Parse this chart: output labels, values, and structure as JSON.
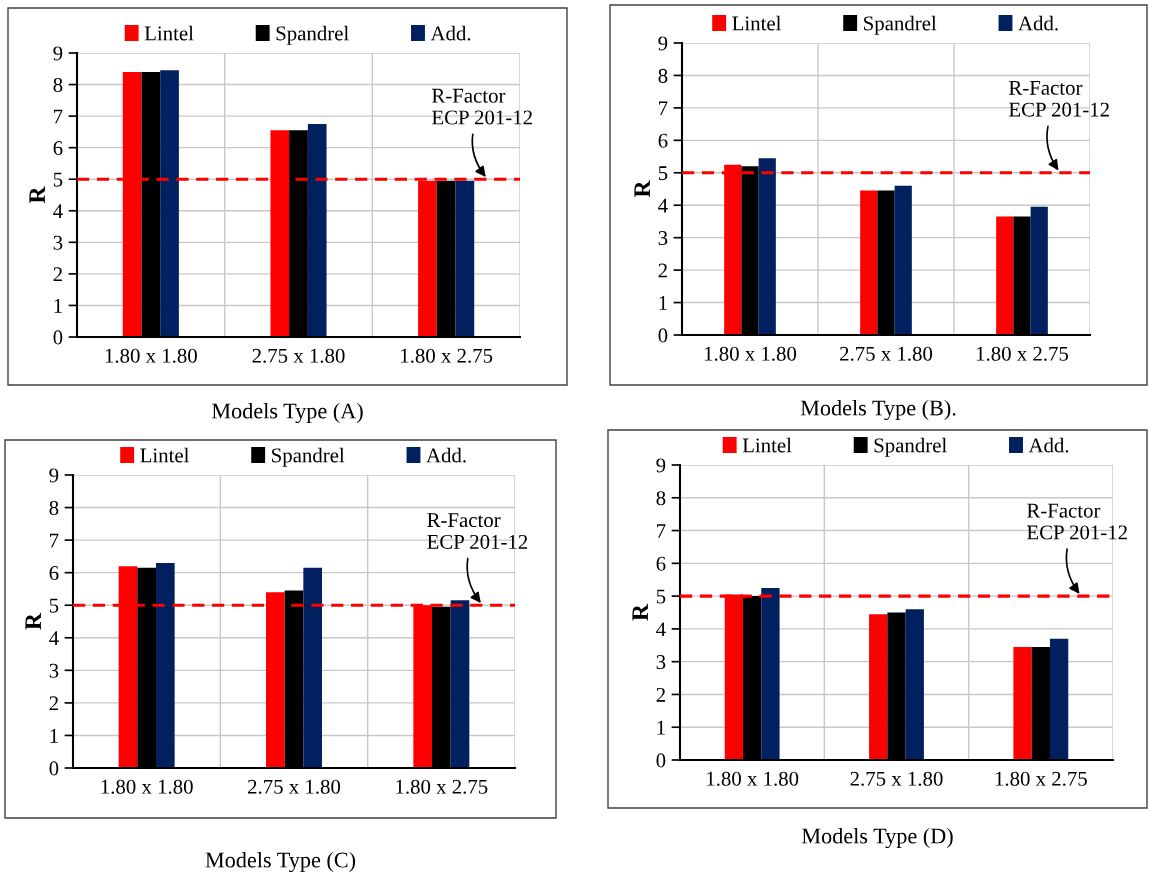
{
  "chart_data": [
    {
      "type": "bar",
      "title": "Models Type (A)",
      "ylabel": "R",
      "categories": [
        "1.80 x 1.80",
        "2.75 x 1.80",
        "1.80 x 2.75"
      ],
      "series": [
        {
          "name": "Lintel",
          "color": "#ff0000",
          "values": [
            8.4,
            6.55,
            4.95
          ]
        },
        {
          "name": "Spandrel",
          "color": "#000000",
          "values": [
            8.4,
            6.55,
            4.95
          ]
        },
        {
          "name": "Add.",
          "color": "#002060",
          "values": [
            8.45,
            6.75,
            4.95
          ]
        }
      ],
      "ylim": [
        0,
        9
      ],
      "yticks": [
        0,
        1,
        2,
        3,
        4,
        5,
        6,
        7,
        8,
        9
      ],
      "grid": true,
      "legend": "top",
      "ref_lines": [
        {
          "axis": "y",
          "value": 5,
          "label": "R-Factor\nECP 201-12",
          "color": "#ff0000",
          "line_style": "dashed"
        }
      ]
    },
    {
      "type": "bar",
      "title": "Models Type (B).",
      "ylabel": "R",
      "categories": [
        "1.80 x 1.80",
        "2.75 x 1.80",
        "1.80 x 2.75"
      ],
      "series": [
        {
          "name": "Lintel",
          "color": "#ff0000",
          "values": [
            5.25,
            4.45,
            3.65
          ]
        },
        {
          "name": "Spandrel",
          "color": "#000000",
          "values": [
            5.2,
            4.45,
            3.65
          ]
        },
        {
          "name": "Add.",
          "color": "#002060",
          "values": [
            5.45,
            4.6,
            3.95
          ]
        }
      ],
      "ylim": [
        0,
        9
      ],
      "yticks": [
        0,
        1,
        2,
        3,
        4,
        5,
        6,
        7,
        8,
        9
      ],
      "grid": true,
      "legend": "top",
      "ref_lines": [
        {
          "axis": "y",
          "value": 5,
          "label": "R-Factor\nECP 201-12",
          "color": "#ff0000",
          "line_style": "dashed"
        }
      ]
    },
    {
      "type": "bar",
      "title": "Models Type (C)",
      "ylabel": "R",
      "categories": [
        "1.80 x 1.80",
        "2.75 x 1.80",
        "1.80 x 2.75"
      ],
      "series": [
        {
          "name": "Lintel",
          "color": "#ff0000",
          "values": [
            6.2,
            5.4,
            5.0
          ]
        },
        {
          "name": "Spandrel",
          "color": "#000000",
          "values": [
            6.15,
            5.45,
            4.95
          ]
        },
        {
          "name": "Add.",
          "color": "#002060",
          "values": [
            6.3,
            6.15,
            5.15
          ]
        }
      ],
      "ylim": [
        0,
        9
      ],
      "yticks": [
        0,
        1,
        2,
        3,
        4,
        5,
        6,
        7,
        8,
        9
      ],
      "grid": true,
      "legend": "top",
      "ref_lines": [
        {
          "axis": "y",
          "value": 5,
          "label": "R-Factor\nECP 201-12",
          "color": "#ff0000",
          "line_style": "dashed"
        }
      ]
    },
    {
      "type": "bar",
      "title": "Models Type (D)",
      "ylabel": "R",
      "categories": [
        "1.80 x 1.80",
        "2.75 x 1.80",
        "1.80 x 2.75"
      ],
      "series": [
        {
          "name": "Lintel",
          "color": "#ff0000",
          "values": [
            5.05,
            4.45,
            3.45
          ]
        },
        {
          "name": "Spandrel",
          "color": "#000000",
          "values": [
            5.0,
            4.5,
            3.45
          ]
        },
        {
          "name": "Add.",
          "color": "#002060",
          "values": [
            5.25,
            4.6,
            3.7
          ]
        }
      ],
      "ylim": [
        0,
        9
      ],
      "yticks": [
        0,
        1,
        2,
        3,
        4,
        5,
        6,
        7,
        8,
        9
      ],
      "grid": true,
      "legend": "top",
      "ref_lines": [
        {
          "axis": "y",
          "value": 5,
          "label": "R-Factor\nECP 201-12",
          "color": "#ff0000",
          "line_style": "dashed"
        }
      ]
    }
  ]
}
